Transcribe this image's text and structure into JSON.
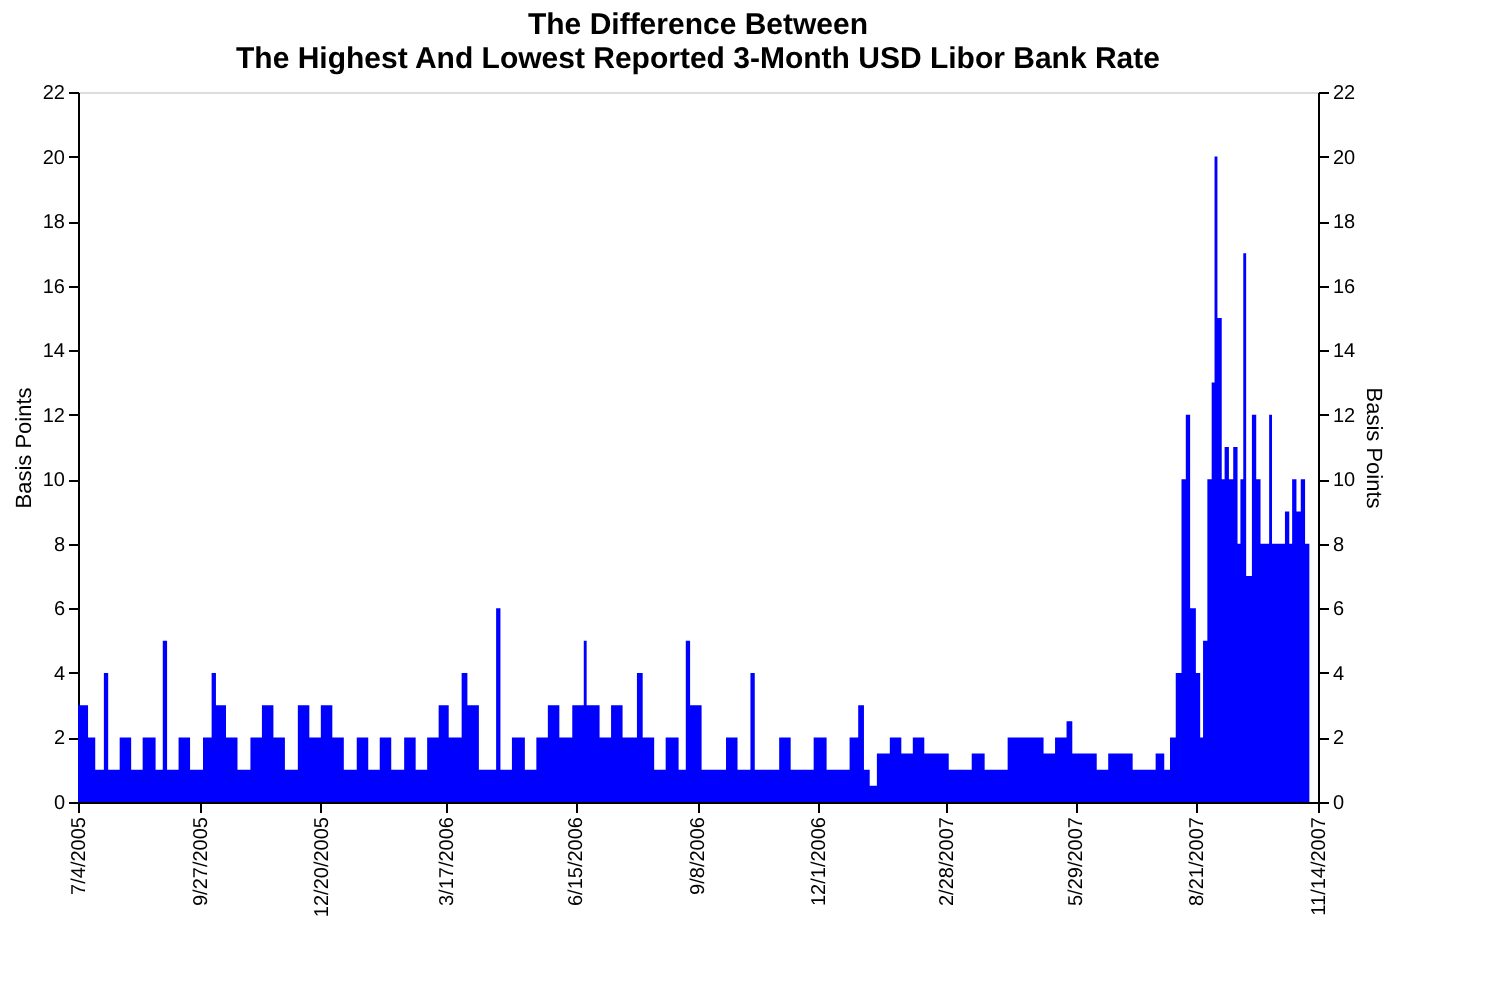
{
  "chart_data": {
    "type": "area",
    "title": "The Difference Between\nThe Highest And Lowest Reported 3-Month USD Libor Bank Rate",
    "ylabel": "Basis Points",
    "y2label": "Basis Points",
    "x": [
      "2005-07-04",
      "2005-07-11",
      "2005-07-16",
      "2005-07-22",
      "2005-07-25",
      "2005-08-02",
      "2005-08-10",
      "2005-08-18",
      "2005-08-27",
      "2005-09-01",
      "2005-09-04",
      "2005-09-12",
      "2005-09-20",
      "2005-09-29",
      "2005-10-05",
      "2005-10-08",
      "2005-10-15",
      "2005-10-23",
      "2005-11-01",
      "2005-11-09",
      "2005-11-17",
      "2005-11-25",
      "2005-12-04",
      "2005-12-12",
      "2005-12-20",
      "2005-12-28",
      "2006-01-05",
      "2006-01-14",
      "2006-01-22",
      "2006-01-30",
      "2006-02-07",
      "2006-02-16",
      "2006-02-24",
      "2006-03-04",
      "2006-03-12",
      "2006-03-19",
      "2006-03-28",
      "2006-04-01",
      "2006-04-09",
      "2006-04-21",
      "2006-04-24",
      "2006-05-02",
      "2006-05-11",
      "2006-05-19",
      "2006-05-27",
      "2006-06-04",
      "2006-06-13",
      "2006-06-21",
      "2006-06-23",
      "2006-07-02",
      "2006-07-10",
      "2006-07-18",
      "2006-07-28",
      "2006-08-01",
      "2006-08-09",
      "2006-08-17",
      "2006-08-26",
      "2006-08-31",
      "2006-09-03",
      "2006-09-11",
      "2006-09-19",
      "2006-09-28",
      "2006-10-06",
      "2006-10-15",
      "2006-10-18",
      "2006-10-27",
      "2006-11-04",
      "2006-11-12",
      "2006-11-20",
      "2006-11-28",
      "2006-12-07",
      "2006-12-15",
      "2006-12-23",
      "2006-12-29",
      "2007-01-02",
      "2007-01-06",
      "2007-01-11",
      "2007-01-20",
      "2007-01-28",
      "2007-02-05",
      "2007-02-13",
      "2007-02-22",
      "2007-03-02",
      "2007-03-10",
      "2007-03-18",
      "2007-03-27",
      "2007-04-04",
      "2007-04-12",
      "2007-04-20",
      "2007-04-29",
      "2007-05-07",
      "2007-05-15",
      "2007-05-23",
      "2007-05-27",
      "2007-06-05",
      "2007-06-13",
      "2007-06-21",
      "2007-06-29",
      "2007-07-08",
      "2007-07-16",
      "2007-07-24",
      "2007-07-30",
      "2007-08-03",
      "2007-08-07",
      "2007-08-11",
      "2007-08-14",
      "2007-08-17",
      "2007-08-21",
      "2007-08-24",
      "2007-08-26",
      "2007-08-29",
      "2007-09-01",
      "2007-09-03",
      "2007-09-05",
      "2007-09-08",
      "2007-09-10",
      "2007-09-13",
      "2007-09-16",
      "2007-09-19",
      "2007-09-21",
      "2007-09-23",
      "2007-09-25",
      "2007-09-29",
      "2007-10-02",
      "2007-10-05",
      "2007-10-11",
      "2007-10-13",
      "2007-10-17",
      "2007-10-22",
      "2007-10-25",
      "2007-10-27",
      "2007-10-30",
      "2007-11-02",
      "2007-11-05",
      "2007-11-08"
    ],
    "series": [
      {
        "color": "#0000ff",
        "values": [
          3,
          2,
          1,
          4,
          1,
          2,
          1,
          2,
          1,
          5,
          1,
          2,
          1,
          2,
          4,
          3,
          2,
          1,
          2,
          3,
          2,
          1,
          3,
          2,
          3,
          2,
          1,
          2,
          1,
          2,
          1,
          2,
          1,
          2,
          3,
          2,
          4,
          3,
          1,
          6,
          1,
          2,
          1,
          2,
          3,
          2,
          3,
          5,
          3,
          2,
          3,
          2,
          4,
          2,
          1,
          2,
          1,
          5,
          3,
          1,
          1,
          2,
          1,
          4,
          1,
          1,
          2,
          1,
          1,
          2,
          1,
          1,
          2,
          3,
          1,
          0.5,
          1.5,
          2,
          1.5,
          2,
          1.5,
          1.5,
          1,
          1,
          1.5,
          1,
          1,
          2,
          2,
          2,
          1.5,
          2,
          2.5,
          1.5,
          1.5,
          1,
          1.5,
          1.5,
          1,
          1,
          1.5,
          1,
          2,
          4,
          10,
          12,
          6,
          4,
          2,
          5,
          10,
          13,
          20,
          15,
          10,
          11,
          10,
          11,
          8,
          10,
          17,
          7,
          12,
          10,
          8,
          12,
          8,
          8,
          9,
          8,
          10,
          9,
          10,
          8,
          8
        ]
      }
    ],
    "xlim": [
      "2005-07-04",
      "2007-11-14"
    ],
    "xticks": [
      {
        "value": "2005-07-04",
        "label": "7/4/2005"
      },
      {
        "value": "2005-09-27",
        "label": "9/27/2005"
      },
      {
        "value": "2005-12-20",
        "label": "12/20/2005"
      },
      {
        "value": "2006-03-17",
        "label": "3/17/2006"
      },
      {
        "value": "2006-06-15",
        "label": "6/15/2006"
      },
      {
        "value": "2006-09-08",
        "label": "9/8/2006"
      },
      {
        "value": "2006-12-01",
        "label": "12/1/2006"
      },
      {
        "value": "2007-02-28",
        "label": "2/28/2007"
      },
      {
        "value": "2007-05-29",
        "label": "5/29/2007"
      },
      {
        "value": "2007-08-21",
        "label": "8/21/2007"
      },
      {
        "value": "2007-11-14",
        "label": "11/14/2007"
      }
    ],
    "ylim": [
      0,
      22
    ],
    "yticks": [
      0,
      2,
      4,
      6,
      8,
      10,
      12,
      14,
      16,
      18,
      20,
      22
    ],
    "y2lim": [
      0,
      22
    ],
    "y2ticks": [
      0,
      2,
      4,
      6,
      8,
      10,
      12,
      14,
      16,
      18,
      20,
      22
    ],
    "grid": false
  }
}
